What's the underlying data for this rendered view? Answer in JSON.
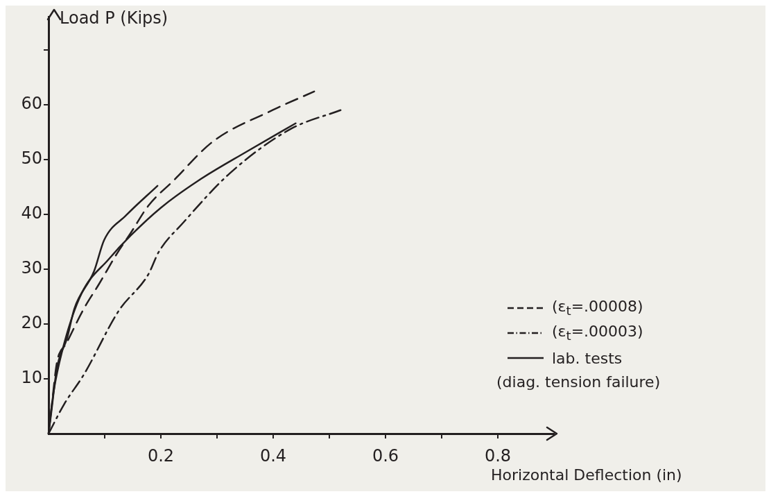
{
  "chart_data": {
    "type": "line",
    "xlabel": "Horizontal Deflection (in)",
    "ylabel": "Load  P (Kips)",
    "xlim": [
      0,
      0.9
    ],
    "ylim": [
      0,
      76
    ],
    "xticks": [
      {
        "value": 0.1,
        "label": null
      },
      {
        "value": 0.2,
        "label": "0.2"
      },
      {
        "value": 0.3,
        "label": null
      },
      {
        "value": 0.4,
        "label": "0.4"
      },
      {
        "value": 0.5,
        "label": null
      },
      {
        "value": 0.6,
        "label": "0.6"
      },
      {
        "value": 0.7,
        "label": null
      },
      {
        "value": 0.8,
        "label": "0.8"
      }
    ],
    "yticks": [
      10,
      20,
      30,
      40,
      50,
      60,
      {
        "value": 70,
        "label": null
      }
    ],
    "grid": false,
    "legend": "bottom right",
    "marker": "none",
    "annotations": [
      "(diag. tension failure)"
    ],
    "series": [
      {
        "name": "(ε$_{t}$=.00008)",
        "color": "#231f20",
        "line_style": "dashed",
        "x": [
          0,
          0.006,
          0.015,
          0.032,
          0.063,
          0.09,
          0.121,
          0.147,
          0.178,
          0.222,
          0.293,
          0.399,
          0.473
        ],
        "values": [
          0,
          5.4,
          13,
          16.5,
          22.8,
          27.3,
          32.7,
          36.7,
          41.6,
          46.1,
          53.3,
          59,
          62.4
        ]
      },
      {
        "name": "(ε$_{t}$=.00003)",
        "color": "#231f20",
        "line_style": "dashdot",
        "x": [
          0,
          0.028,
          0.063,
          0.125,
          0.178,
          0.196,
          0.24,
          0.323,
          0.43,
          0.52
        ],
        "values": [
          0,
          5.4,
          10.8,
          22.4,
          29.1,
          33.1,
          38.5,
          47.5,
          55.5,
          59
        ]
      },
      {
        "name": "lab. tests",
        "color": "#231f20",
        "line_style": "solid",
        "x": [
          0,
          0.004,
          0.015,
          0.033,
          0.046,
          0.081,
          0.099,
          0.138,
          0.194
        ],
        "values": [
          0,
          3.1,
          12,
          17.4,
          22.8,
          29.6,
          35.3,
          39.8,
          45.2
        ]
      },
      {
        "color": "#231f20",
        "line_style": "solid",
        "x": [
          0,
          0.009,
          0.028,
          0.059,
          0.107,
          0.147,
          0.2,
          0.266,
          0.354,
          0.44
        ],
        "values": [
          0,
          7.6,
          16.5,
          25.6,
          31.8,
          36.2,
          41.2,
          46.1,
          51.5,
          56.6
        ]
      }
    ]
  }
}
